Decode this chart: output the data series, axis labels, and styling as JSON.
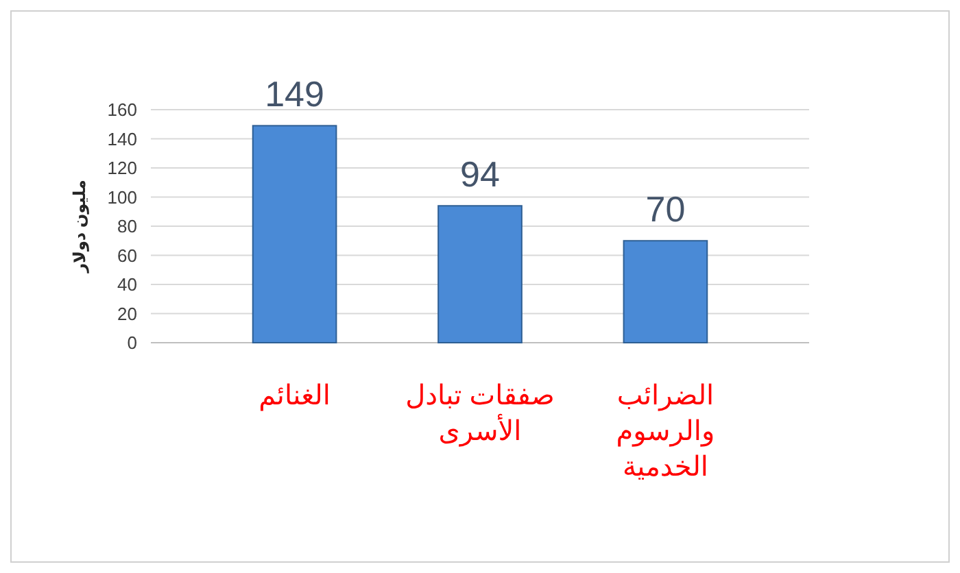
{
  "chart_data": {
    "type": "bar",
    "ylabel": "مليون دولار",
    "categories": [
      "الغنائم",
      "صفقات تبادل الأسرى",
      "الضرائب والرسوم الخدمية"
    ],
    "values": [
      149,
      94,
      70
    ],
    "color": "#4a8ad6",
    "ylim": [
      0,
      160
    ],
    "yticks": [
      0,
      20,
      40,
      60,
      80,
      100,
      120,
      140,
      160
    ],
    "grid": "y",
    "data_labels": true
  }
}
